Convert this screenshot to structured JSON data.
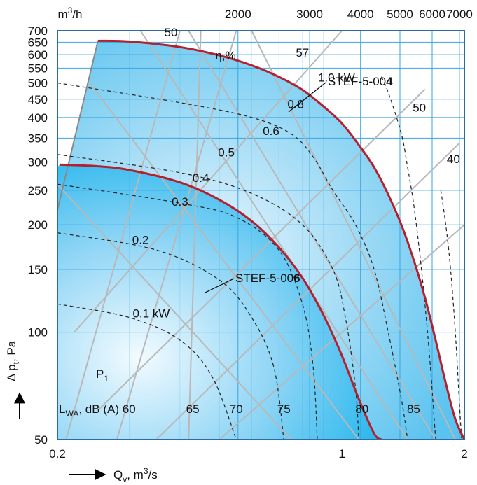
{
  "chart_data": {
    "type": "line",
    "x_axis_bottom": {
      "label_prefix": "Q",
      "label_sub": "v",
      "label_unit": ", m",
      "label_sup": "3",
      "label_suffix": "/s",
      "scale": "log",
      "range": [
        0.2,
        2
      ],
      "ticks": [
        {
          "v": 0.2,
          "t": "0.2"
        },
        {
          "v": 1,
          "t": "1"
        },
        {
          "v": 2,
          "t": "2"
        }
      ]
    },
    "x_axis_top": {
      "label": "m",
      "label_sup": "3",
      "label_suffix": "/h",
      "ticks": [
        {
          "v": 2000,
          "t": "2000"
        },
        {
          "v": 3000,
          "t": "3000"
        },
        {
          "v": 4000,
          "t": "4000"
        },
        {
          "v": 5000,
          "t": "5000"
        },
        {
          "v": 6000,
          "t": "6000"
        },
        {
          "v": 7000,
          "t": "7000"
        }
      ]
    },
    "y_axis": {
      "label_prefix": "Δ p",
      "label_sub": "t",
      "label_suffix": ", Pa",
      "scale": "log",
      "range": [
        50,
        700
      ],
      "ticks": [
        50,
        100,
        150,
        200,
        250,
        300,
        350,
        400,
        450,
        500,
        550,
        600,
        650,
        700
      ]
    },
    "grid": true,
    "series": [
      {
        "name": "STEF-5-00",
        "name_bold": "4",
        "color": "#b3202e",
        "points": [
          [
            0.2515,
            656
          ],
          [
            0.3,
            653
          ],
          [
            0.4,
            630
          ],
          [
            0.5,
            597
          ],
          [
            0.6,
            560
          ],
          [
            0.7,
            520
          ],
          [
            0.8,
            478
          ],
          [
            0.9,
            430
          ],
          [
            1.0,
            385
          ],
          [
            1.1,
            335
          ],
          [
            1.2,
            290
          ],
          [
            1.3,
            243
          ],
          [
            1.4,
            200
          ],
          [
            1.5,
            160
          ],
          [
            1.6,
            125
          ],
          [
            1.7,
            95
          ],
          [
            1.8,
            72
          ],
          [
            1.9,
            57
          ],
          [
            2.0,
            50
          ]
        ]
      },
      {
        "name": "STEF-5-00",
        "name_bold": "6",
        "color": "#b3202e",
        "points": [
          [
            0.2025,
            295
          ],
          [
            0.25,
            292
          ],
          [
            0.3,
            285
          ],
          [
            0.4,
            263
          ],
          [
            0.5,
            235
          ],
          [
            0.6,
            205
          ],
          [
            0.7,
            173
          ],
          [
            0.8,
            142
          ],
          [
            0.9,
            112
          ],
          [
            1.0,
            86
          ],
          [
            1.1,
            65
          ],
          [
            1.2,
            52
          ],
          [
            1.25,
            50
          ]
        ]
      }
    ],
    "power_curves": {
      "label_prefix": "P",
      "label_sub": "1",
      "values": [
        {
          "t": "0.1 kW",
          "points": [
            [
              0.2,
              120
            ],
            [
              0.3,
              110
            ],
            [
              0.4,
              95
            ],
            [
              0.48,
              75
            ],
            [
              0.55,
              50
            ]
          ]
        },
        {
          "t": "0.2",
          "points": [
            [
              0.2,
              190
            ],
            [
              0.35,
              170
            ],
            [
              0.5,
              140
            ],
            [
              0.6,
              110
            ],
            [
              0.68,
              80
            ],
            [
              0.72,
              50
            ]
          ]
        },
        {
          "t": "0.3",
          "points": [
            [
              0.2,
              260
            ],
            [
              0.4,
              230
            ],
            [
              0.55,
              210
            ],
            [
              0.7,
              170
            ],
            [
              0.8,
              120
            ],
            [
              0.85,
              80
            ],
            [
              0.87,
              50
            ]
          ]
        },
        {
          "t": "0.4",
          "points": [
            [
              0.2,
              315
            ],
            [
              0.4,
              280
            ],
            [
              0.6,
              245
            ],
            [
              0.8,
              200
            ],
            [
              0.95,
              150
            ],
            [
              1.02,
              110
            ],
            [
              1.08,
              70
            ],
            [
              1.1,
              50
            ]
          ]
        },
        {
          "t": "0.6",
          "points": [
            [
              0.2,
              500
            ],
            [
              0.4,
              440
            ],
            [
              0.6,
              400
            ],
            [
              0.75,
              360
            ],
            [
              0.85,
              310
            ],
            [
              0.95,
              250
            ],
            [
              1.08,
              200
            ],
            [
              1.2,
              150
            ],
            [
              1.3,
              100
            ],
            [
              1.4,
              65
            ],
            [
              1.45,
              50
            ]
          ]
        },
        {
          "t": "1.0 kW",
          "points": [
            [
              1.25,
              520
            ],
            [
              1.3,
              470
            ],
            [
              1.4,
              360
            ],
            [
              1.45,
              290
            ],
            [
              1.5,
              230
            ],
            [
              1.55,
              170
            ],
            [
              1.6,
              120
            ],
            [
              1.65,
              80
            ],
            [
              1.7,
              50
            ]
          ]
        },
        {
          "t": "",
          "points": [
            [
              1.75,
              250
            ],
            [
              1.8,
              200
            ],
            [
              1.85,
              150
            ],
            [
              1.9,
              100
            ],
            [
              1.95,
              60
            ],
            [
              1.97,
              50
            ]
          ]
        }
      ]
    },
    "power_labels": [
      {
        "t": "0.1 kW",
        "q": 0.34,
        "p": 110
      },
      {
        "t": "0.2",
        "q": 0.32,
        "p": 177
      },
      {
        "t": "0.3",
        "q": 0.4,
        "p": 226
      },
      {
        "t": "0.4",
        "q": 0.45,
        "p": 264
      },
      {
        "t": "0.5",
        "q": 0.52,
        "p": 311
      },
      {
        "t": "0.6",
        "q": 0.67,
        "p": 357
      },
      {
        "t": "0.8",
        "q": 0.77,
        "p": 425
      },
      {
        "t": "1.0 kW",
        "q": 0.97,
        "p": 505
      }
    ],
    "efficiency_label": "η,%",
    "efficiency_values": [
      {
        "t": "50",
        "q": 0.38,
        "p": 675
      },
      {
        "t": "57",
        "q": 0.8,
        "p": 592
      },
      {
        "t": "50",
        "q": 1.55,
        "p": 415
      },
      {
        "t": "40",
        "q": 1.88,
        "p": 298
      }
    ],
    "sound_label_prefix": "L",
    "sound_label_sub": "WA",
    "sound_label_suffix": ", dB (A)",
    "sound_values": [
      {
        "t": "60",
        "q": 0.3
      },
      {
        "t": "65",
        "q": 0.43
      },
      {
        "t": "70",
        "q": 0.55
      },
      {
        "t": "75",
        "q": 0.72
      },
      {
        "t": "80",
        "q": 1.12
      },
      {
        "t": "85",
        "q": 1.5
      }
    ],
    "colors": {
      "fill_light": "#eaf7fe",
      "fill_mid": "#7dd0f3",
      "fill_deep": "#16b0ec",
      "grid": "#3aa6e0",
      "curve": "#b3202e",
      "gray_lines": "#b8b8b8"
    }
  }
}
